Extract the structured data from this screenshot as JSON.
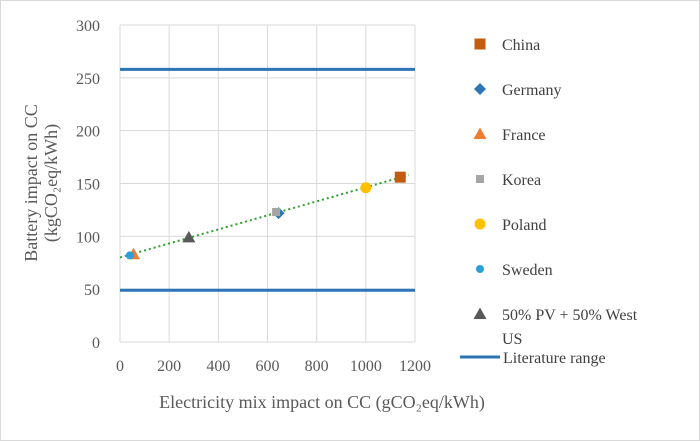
{
  "chart_data": {
    "type": "scatter",
    "xlabel": "Electricity mix impact on CC (gCO₂eq/kWh)",
    "ylabel_line1": "Battery impact on CC",
    "ylabel_line2": "(kgCO₂eq/kWh)",
    "xlim": [
      0,
      1200
    ],
    "ylim": [
      0,
      300
    ],
    "x_ticks": [
      0,
      200,
      400,
      600,
      800,
      1000,
      1200
    ],
    "y_ticks": [
      0,
      50,
      100,
      150,
      200,
      250,
      300
    ],
    "grid": true,
    "legend_position": "right",
    "series": [
      {
        "name": "China",
        "marker": "square",
        "color": "#c55a11",
        "x": 1140,
        "y": 156
      },
      {
        "name": "Germany",
        "marker": "diamond",
        "color": "#2e75b6",
        "x": 645,
        "y": 122
      },
      {
        "name": "France",
        "marker": "triangle",
        "color": "#ed7d31",
        "x": 55,
        "y": 83
      },
      {
        "name": "Korea",
        "marker": "square-small",
        "color": "#a5a5a5",
        "x": 635,
        "y": 123
      },
      {
        "name": "Poland",
        "marker": "circle",
        "color": "#ffc000",
        "x": 1000,
        "y": 146
      },
      {
        "name": "Sweden",
        "marker": "circle-small",
        "color": "#2a9fd8",
        "x": 40,
        "y": 82
      },
      {
        "name": "50% PV + 50% West US",
        "marker": "triangle",
        "color": "#595959",
        "x": 280,
        "y": 99
      }
    ],
    "literature_range": {
      "name": "Literature range",
      "color": "#2e75b6",
      "low": 49,
      "high": 258
    },
    "trendline": {
      "color": "#2ca02c",
      "x": [
        0,
        1175
      ],
      "y": [
        80,
        158
      ]
    }
  }
}
